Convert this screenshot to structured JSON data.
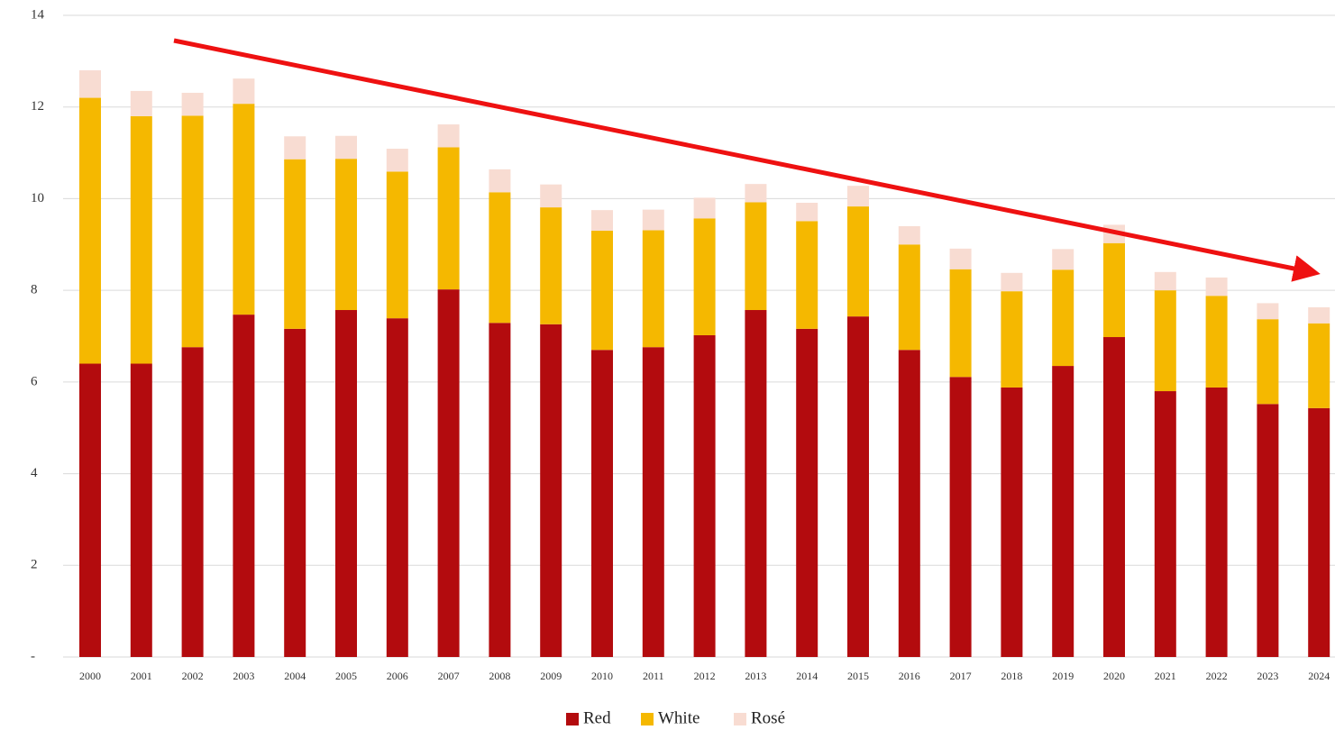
{
  "chart_data": {
    "type": "stacked_bar",
    "categories": [
      "2000",
      "2001",
      "2002",
      "2003",
      "2004",
      "2005",
      "2006",
      "2007",
      "2008",
      "2009",
      "2010",
      "2011",
      "2012",
      "2013",
      "2014",
      "2015",
      "2016",
      "2017",
      "2018",
      "2019",
      "2020",
      "2021",
      "2022",
      "2023",
      "2024"
    ],
    "series": [
      {
        "name": "Red",
        "color": "#b30b0e",
        "values": [
          6.4,
          6.4,
          6.76,
          7.47,
          7.16,
          7.57,
          7.39,
          8.02,
          7.29,
          7.26,
          6.7,
          6.76,
          7.02,
          7.57,
          7.16,
          7.43,
          6.7,
          6.11,
          5.88,
          6.35,
          6.98,
          5.8,
          5.88,
          5.52,
          5.43
        ]
      },
      {
        "name": "White",
        "color": "#f5b800",
        "values": [
          5.8,
          5.4,
          5.05,
          4.6,
          3.7,
          3.3,
          3.2,
          3.1,
          2.85,
          2.55,
          2.6,
          2.55,
          2.55,
          2.35,
          2.35,
          2.4,
          2.3,
          2.35,
          2.1,
          2.1,
          2.05,
          2.2,
          2.0,
          1.85,
          1.85
        ]
      },
      {
        "name": "Rosé",
        "color": "#f8dcd2",
        "values": [
          0.6,
          0.55,
          0.5,
          0.55,
          0.5,
          0.5,
          0.5,
          0.5,
          0.5,
          0.5,
          0.45,
          0.45,
          0.45,
          0.4,
          0.4,
          0.45,
          0.4,
          0.45,
          0.4,
          0.45,
          0.4,
          0.4,
          0.4,
          0.35,
          0.35
        ]
      }
    ],
    "ylim": [
      0,
      14
    ],
    "yticks": [
      {
        "value": 0,
        "label": "-"
      },
      2,
      4,
      6,
      8,
      10,
      12,
      14
    ],
    "grid": true,
    "legend": "bottom"
  }
}
